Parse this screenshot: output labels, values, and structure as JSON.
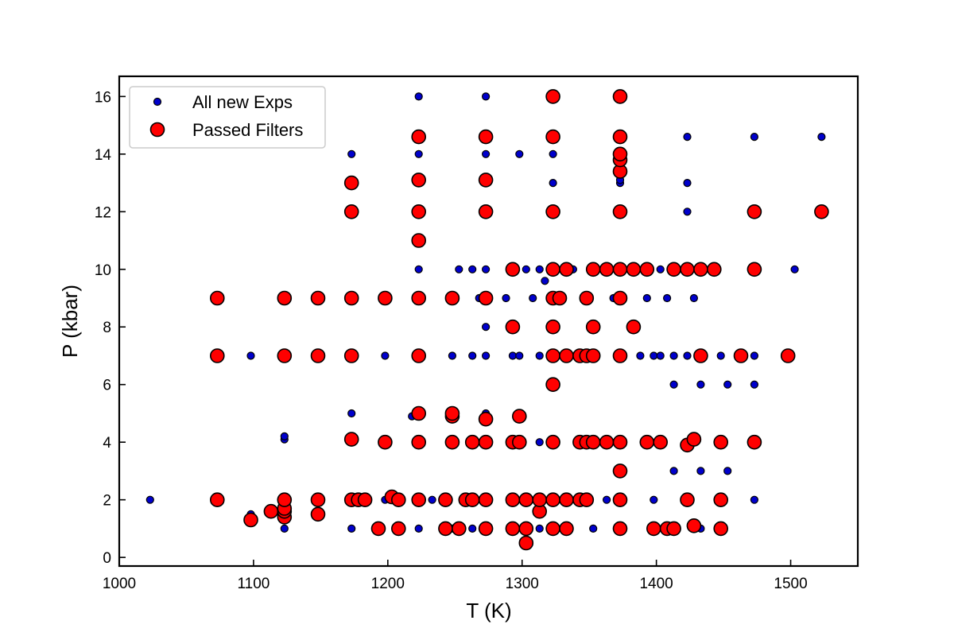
{
  "chart_data": {
    "type": "scatter",
    "xlabel": "T (K)",
    "ylabel": "P (kbar)",
    "xlim": [
      1000,
      1550
    ],
    "ylim": [
      -0.3,
      16.7
    ],
    "xticks": [
      1000,
      1100,
      1200,
      1300,
      1400,
      1500
    ],
    "yticks": [
      0,
      2,
      4,
      6,
      8,
      10,
      12,
      14,
      16
    ],
    "grid": false,
    "legend_position": "top-left",
    "series": [
      {
        "name": "All new Exps",
        "color": "#0000cc",
        "edge": "#000000",
        "marker": "small-circle",
        "points": [
          [
            1023,
            2
          ],
          [
            1073,
            2
          ],
          [
            1073,
            7
          ],
          [
            1073,
            9
          ],
          [
            1098,
            1.3
          ],
          [
            1098,
            1.5
          ],
          [
            1098,
            7
          ],
          [
            1123,
            1
          ],
          [
            1123,
            1.4
          ],
          [
            1123,
            1.6
          ],
          [
            1123,
            2
          ],
          [
            1123,
            4.1
          ],
          [
            1123,
            4.2
          ],
          [
            1123,
            7
          ],
          [
            1123,
            9
          ],
          [
            1148,
            1.5
          ],
          [
            1148,
            2
          ],
          [
            1148,
            7
          ],
          [
            1148,
            9
          ],
          [
            1173,
            1
          ],
          [
            1173,
            2
          ],
          [
            1173,
            4.1
          ],
          [
            1173,
            5
          ],
          [
            1173,
            7
          ],
          [
            1173,
            9
          ],
          [
            1173,
            12
          ],
          [
            1173,
            13
          ],
          [
            1173,
            14
          ],
          [
            1198,
            2
          ],
          [
            1198,
            4
          ],
          [
            1198,
            7
          ],
          [
            1198,
            9
          ],
          [
            1218,
            4.9
          ],
          [
            1223,
            1
          ],
          [
            1223,
            2
          ],
          [
            1223,
            4
          ],
          [
            1223,
            5
          ],
          [
            1223,
            7
          ],
          [
            1223,
            9
          ],
          [
            1223,
            10
          ],
          [
            1223,
            11
          ],
          [
            1223,
            12
          ],
          [
            1223,
            13
          ],
          [
            1223,
            14
          ],
          [
            1223,
            14.6
          ],
          [
            1223,
            16
          ],
          [
            1233,
            2
          ],
          [
            1248,
            1
          ],
          [
            1248,
            4.9
          ],
          [
            1248,
            7
          ],
          [
            1253,
            1
          ],
          [
            1258,
            2
          ],
          [
            1263,
            1
          ],
          [
            1263,
            4
          ],
          [
            1263,
            7
          ],
          [
            1263,
            10
          ],
          [
            1253,
            10
          ],
          [
            1268,
            9
          ],
          [
            1273,
            1
          ],
          [
            1273,
            2
          ],
          [
            1273,
            3.9
          ],
          [
            1273,
            4
          ],
          [
            1273,
            4.8
          ],
          [
            1273,
            5
          ],
          [
            1273,
            7
          ],
          [
            1273,
            8
          ],
          [
            1273,
            9
          ],
          [
            1273,
            10
          ],
          [
            1273,
            12
          ],
          [
            1273,
            13
          ],
          [
            1273,
            14
          ],
          [
            1273,
            14.6
          ],
          [
            1273,
            16
          ],
          [
            1288,
            9
          ],
          [
            1293,
            1
          ],
          [
            1293,
            2
          ],
          [
            1293,
            4
          ],
          [
            1293,
            7
          ],
          [
            1293,
            8
          ],
          [
            1293,
            10
          ],
          [
            1298,
            7
          ],
          [
            1298,
            14
          ],
          [
            1303,
            10
          ],
          [
            1308,
            9
          ],
          [
            1313,
            1
          ],
          [
            1313,
            2
          ],
          [
            1313,
            4
          ],
          [
            1313,
            7
          ],
          [
            1313,
            10
          ],
          [
            1317,
            9.6
          ],
          [
            1323,
            1
          ],
          [
            1323,
            2
          ],
          [
            1323,
            4
          ],
          [
            1323,
            6
          ],
          [
            1323,
            7
          ],
          [
            1323,
            8
          ],
          [
            1323,
            9
          ],
          [
            1323,
            10
          ],
          [
            1323,
            12
          ],
          [
            1323,
            13
          ],
          [
            1323,
            14
          ],
          [
            1323,
            14.6
          ],
          [
            1323,
            16
          ],
          [
            1338,
            10
          ],
          [
            1353,
            1
          ],
          [
            1363,
            2
          ],
          [
            1368,
            9
          ],
          [
            1373,
            1
          ],
          [
            1373,
            2
          ],
          [
            1373,
            3
          ],
          [
            1373,
            4
          ],
          [
            1373,
            7
          ],
          [
            1373,
            9
          ],
          [
            1373,
            10
          ],
          [
            1373,
            12
          ],
          [
            1373,
            13
          ],
          [
            1373,
            13.1
          ],
          [
            1373,
            13.5
          ],
          [
            1373,
            14
          ],
          [
            1373,
            14.6
          ],
          [
            1373,
            16
          ],
          [
            1388,
            7
          ],
          [
            1393,
            9
          ],
          [
            1398,
            2
          ],
          [
            1398,
            7
          ],
          [
            1403,
            10
          ],
          [
            1403,
            7
          ],
          [
            1408,
            9
          ],
          [
            1413,
            3
          ],
          [
            1413,
            6
          ],
          [
            1413,
            7
          ],
          [
            1423,
            7
          ],
          [
            1423,
            12
          ],
          [
            1423,
            13
          ],
          [
            1423,
            14.6
          ],
          [
            1428,
            9
          ],
          [
            1433,
            1
          ],
          [
            1433,
            3
          ],
          [
            1433,
            6
          ],
          [
            1448,
            7
          ],
          [
            1453,
            3
          ],
          [
            1453,
            6
          ],
          [
            1473,
            2
          ],
          [
            1473,
            6
          ],
          [
            1473,
            7
          ],
          [
            1473,
            14.6
          ],
          [
            1503,
            10
          ],
          [
            1523,
            14.6
          ]
        ]
      },
      {
        "name": "Passed Filters",
        "color": "#ff0000",
        "edge": "#000000",
        "marker": "large-circle",
        "points": [
          [
            1073,
            2
          ],
          [
            1073,
            7
          ],
          [
            1073,
            9
          ],
          [
            1098,
            1.3
          ],
          [
            1113,
            1.6
          ],
          [
            1123,
            1.4
          ],
          [
            1123,
            1.6
          ],
          [
            1123,
            1.7
          ],
          [
            1123,
            2
          ],
          [
            1123,
            7
          ],
          [
            1123,
            9
          ],
          [
            1148,
            1.5
          ],
          [
            1148,
            2
          ],
          [
            1148,
            7
          ],
          [
            1148,
            9
          ],
          [
            1173,
            2
          ],
          [
            1173,
            4.1
          ],
          [
            1173,
            7
          ],
          [
            1173,
            9
          ],
          [
            1173,
            12
          ],
          [
            1173,
            13
          ],
          [
            1178,
            2
          ],
          [
            1183,
            2
          ],
          [
            1193,
            1
          ],
          [
            1198,
            4
          ],
          [
            1198,
            9
          ],
          [
            1203,
            2.1
          ],
          [
            1208,
            1
          ],
          [
            1208,
            2
          ],
          [
            1223,
            2
          ],
          [
            1223,
            4
          ],
          [
            1223,
            5
          ],
          [
            1223,
            7
          ],
          [
            1223,
            9
          ],
          [
            1223,
            11
          ],
          [
            1223,
            12
          ],
          [
            1223,
            13.1
          ],
          [
            1223,
            14.6
          ],
          [
            1243,
            1
          ],
          [
            1243,
            2
          ],
          [
            1248,
            4
          ],
          [
            1248,
            4.9
          ],
          [
            1248,
            5
          ],
          [
            1248,
            9
          ],
          [
            1253,
            1
          ],
          [
            1258,
            2
          ],
          [
            1263,
            2
          ],
          [
            1263,
            4
          ],
          [
            1273,
            1
          ],
          [
            1273,
            2
          ],
          [
            1273,
            4
          ],
          [
            1273,
            4.8
          ],
          [
            1273,
            9
          ],
          [
            1273,
            12
          ],
          [
            1273,
            13.1
          ],
          [
            1273,
            14.6
          ],
          [
            1293,
            1
          ],
          [
            1293,
            2
          ],
          [
            1293,
            4
          ],
          [
            1293,
            8
          ],
          [
            1293,
            10
          ],
          [
            1298,
            4
          ],
          [
            1298,
            4.9
          ],
          [
            1303,
            0.5
          ],
          [
            1303,
            1
          ],
          [
            1303,
            2
          ],
          [
            1313,
            1.6
          ],
          [
            1313,
            2
          ],
          [
            1323,
            1
          ],
          [
            1323,
            2
          ],
          [
            1323,
            4
          ],
          [
            1323,
            6
          ],
          [
            1323,
            7
          ],
          [
            1323,
            8
          ],
          [
            1323,
            9
          ],
          [
            1323,
            10
          ],
          [
            1323,
            12
          ],
          [
            1323,
            14.6
          ],
          [
            1323,
            16
          ],
          [
            1328,
            9
          ],
          [
            1333,
            1
          ],
          [
            1333,
            2
          ],
          [
            1333,
            7
          ],
          [
            1333,
            10
          ],
          [
            1343,
            2
          ],
          [
            1343,
            4
          ],
          [
            1343,
            7
          ],
          [
            1348,
            2
          ],
          [
            1348,
            4
          ],
          [
            1348,
            7
          ],
          [
            1348,
            9
          ],
          [
            1353,
            4
          ],
          [
            1353,
            7
          ],
          [
            1353,
            8
          ],
          [
            1353,
            10
          ],
          [
            1363,
            4
          ],
          [
            1363,
            10
          ],
          [
            1373,
            1
          ],
          [
            1373,
            2
          ],
          [
            1373,
            3
          ],
          [
            1373,
            4
          ],
          [
            1373,
            7
          ],
          [
            1373,
            9
          ],
          [
            1373,
            10
          ],
          [
            1373,
            12
          ],
          [
            1373,
            13.4
          ],
          [
            1373,
            13.8
          ],
          [
            1373,
            14
          ],
          [
            1373,
            14.6
          ],
          [
            1373,
            16
          ],
          [
            1383,
            8
          ],
          [
            1383,
            10
          ],
          [
            1393,
            4
          ],
          [
            1393,
            10
          ],
          [
            1398,
            1
          ],
          [
            1403,
            4
          ],
          [
            1408,
            1
          ],
          [
            1413,
            1
          ],
          [
            1413,
            10
          ],
          [
            1423,
            2
          ],
          [
            1423,
            3.9
          ],
          [
            1423,
            10
          ],
          [
            1428,
            1.1
          ],
          [
            1428,
            4.1
          ],
          [
            1433,
            7
          ],
          [
            1433,
            10
          ],
          [
            1443,
            10
          ],
          [
            1448,
            1
          ],
          [
            1448,
            2
          ],
          [
            1448,
            4
          ],
          [
            1463,
            7
          ],
          [
            1473,
            4
          ],
          [
            1473,
            10
          ],
          [
            1473,
            12
          ],
          [
            1498,
            7
          ],
          [
            1523,
            12
          ]
        ]
      }
    ]
  }
}
